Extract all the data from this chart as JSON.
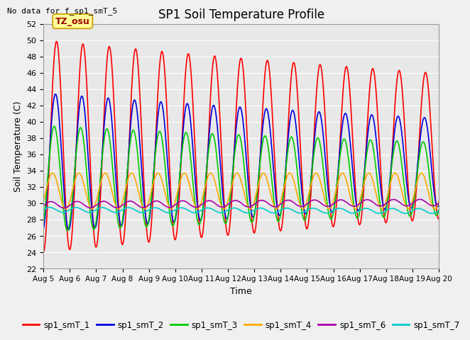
{
  "title": "SP1 Soil Temperature Profile",
  "note": "No data for f_sp1_smT_5",
  "xlabel": "Time",
  "ylabel": "Soil Temperature (C)",
  "ylim": [
    22,
    52
  ],
  "xlim": [
    0,
    15
  ],
  "xtick_labels": [
    "Aug 5",
    "Aug 6",
    "Aug 7",
    "Aug 8",
    "Aug 9",
    "Aug 10",
    "Aug 11",
    "Aug 12",
    "Aug 13",
    "Aug 14",
    "Aug 15",
    "Aug 16",
    "Aug 17",
    "Aug 18",
    "Aug 19",
    "Aug 20"
  ],
  "tz_label": "TZ_osu",
  "fig_facecolor": "#f0f0f0",
  "ax_facecolor": "#e8e8e8",
  "series_colors": {
    "sp1_smT_1": "#ff0000",
    "sp1_smT_2": "#0000dd",
    "sp1_smT_3": "#00cc00",
    "sp1_smT_4": "#ffaa00",
    "sp1_smT_6": "#aa00aa",
    "sp1_smT_7": "#00cccc"
  },
  "legend_order": [
    "sp1_smT_1",
    "sp1_smT_2",
    "sp1_smT_3",
    "sp1_smT_4",
    "sp1_smT_6",
    "sp1_smT_7"
  ]
}
